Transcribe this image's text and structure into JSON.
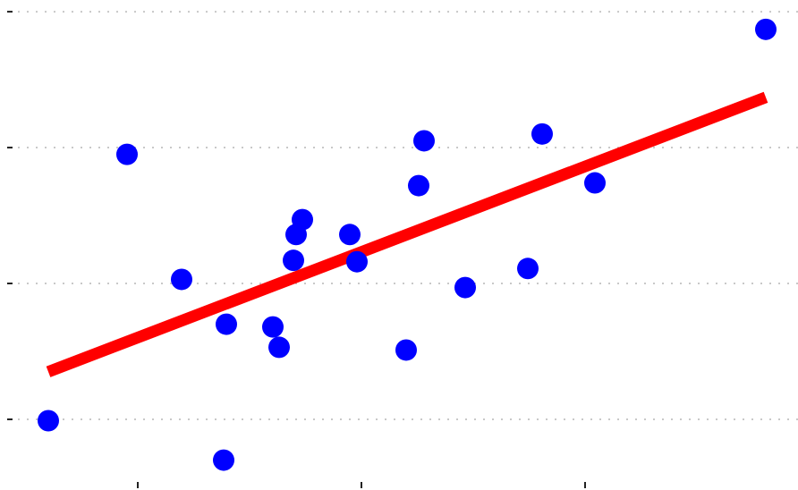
{
  "chart_data": {
    "type": "scatter",
    "x": [
      0.6,
      0.952,
      1.196,
      1.384,
      1.396,
      1.604,
      1.632,
      1.696,
      1.708,
      1.736,
      1.948,
      1.98,
      2.2,
      2.256,
      2.28,
      2.464,
      2.744,
      2.808,
      3.044,
      3.808
    ],
    "values": [
      -0.01,
      1.95,
      1.03,
      -0.3,
      0.7,
      0.68,
      0.53,
      1.17,
      1.36,
      1.47,
      1.36,
      1.16,
      0.51,
      1.72,
      2.05,
      0.97,
      1.11,
      2.1,
      1.74,
      2.87
    ],
    "color": "#0000ff",
    "fit": {
      "x": [
        0.6,
        3.808
      ],
      "values": [
        0.35,
        2.37
      ],
      "color": "#ff0000"
    },
    "xlim": [
      0.384,
      3.952
    ],
    "ylim": [
      -0.52,
      3.086
    ],
    "xticks": [
      1,
      2,
      3
    ],
    "yticks": [
      0,
      1,
      2,
      3
    ],
    "grid": true
  }
}
